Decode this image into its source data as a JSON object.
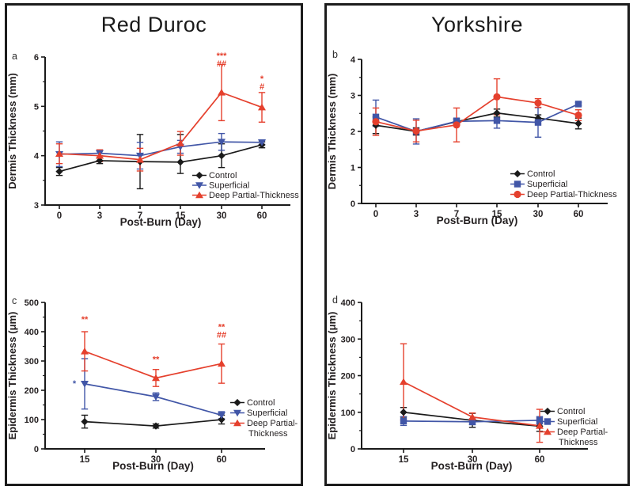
{
  "figure": {
    "groups": [
      {
        "title": "Red Duroc"
      },
      {
        "title": "Yorkshire"
      }
    ]
  },
  "colors": {
    "control": "#1a1a1a",
    "superficial": "#4156a7",
    "deep_partial_thickness": "#e5402d"
  },
  "chart_data": [
    {
      "id": "a",
      "panel_label": "a",
      "group": "Red Duroc",
      "type": "line",
      "xlabel": "Post-Burn (Day)",
      "ylabel": "Dermis  Thickness (mm)",
      "categories": [
        "0",
        "3",
        "7",
        "15",
        "30",
        "60"
      ],
      "ylim": [
        3,
        6
      ],
      "yticks": [
        3,
        4,
        5,
        6
      ],
      "grid": false,
      "legend_position": "lower-right",
      "series": [
        {
          "name": "Control",
          "color": "#1a1a1a",
          "marker": "diamond",
          "values": [
            3.68,
            3.9,
            3.88,
            3.87,
            4.0,
            4.22
          ],
          "err": [
            0.08,
            0.06,
            0.55,
            [
              0.23,
              0.56
            ],
            0.24,
            0.06
          ]
        },
        {
          "name": "Superficial",
          "color": "#4156a7",
          "marker": "triangle-down",
          "values": [
            4.03,
            4.05,
            4.0,
            4.18,
            4.28,
            4.27
          ],
          "err": [
            0.25,
            0.05,
            0.27,
            0.13,
            0.17,
            0.04
          ]
        },
        {
          "name": "Deep Partial-Thickness",
          "color": "#e5402d",
          "marker": "triangle-up",
          "values": [
            4.04,
            4.0,
            3.92,
            4.25,
            5.28,
            4.98
          ],
          "err": [
            0.2,
            0.12,
            0.23,
            0.24,
            0.57,
            0.3
          ]
        }
      ],
      "annotations": [
        {
          "x": "30",
          "text_lines": [
            "***",
            "##"
          ],
          "color": "#e5402d",
          "y": 5.97,
          "dx": 0
        },
        {
          "x": "60",
          "text_lines": [
            "*",
            "#"
          ],
          "color": "#e5402d",
          "y": 5.5,
          "dx": 0
        }
      ]
    },
    {
      "id": "b",
      "panel_label": "b",
      "group": "Yorkshire",
      "type": "line",
      "xlabel": "Post-Burn (Day)",
      "ylabel": "Dermis  Thickness (mm)",
      "categories": [
        "0",
        "3",
        "7",
        "15",
        "30",
        "60"
      ],
      "ylim": [
        0,
        4
      ],
      "yticks": [
        0,
        1,
        2,
        3,
        4
      ],
      "grid": false,
      "legend_position": "lower-right",
      "series": [
        {
          "name": "Control",
          "color": "#1a1a1a",
          "marker": "diamond",
          "values": [
            2.17,
            2.0,
            2.27,
            2.51,
            2.37,
            2.22
          ],
          "err": [
            0.23,
            0.1,
            0.06,
            0.11,
            0.09,
            0.15
          ]
        },
        {
          "name": "Superficial",
          "color": "#4156a7",
          "marker": "square",
          "values": [
            2.4,
            2.0,
            2.28,
            2.3,
            2.25,
            2.76
          ],
          "err": [
            [
              0.26,
              0.47
            ],
            0.35,
            0.09,
            0.21,
            0.41,
            0.04
          ]
        },
        {
          "name": "Deep Partial-Thickness",
          "color": "#e5402d",
          "marker": "circle",
          "values": [
            2.27,
            2.01,
            2.18,
            2.96,
            2.79,
            2.45
          ],
          "err": [
            0.38,
            0.3,
            0.47,
            0.5,
            0.12,
            0.15
          ]
        }
      ],
      "annotations": []
    },
    {
      "id": "c",
      "panel_label": "c",
      "group": "Red Duroc",
      "type": "line",
      "xlabel": "Post-Burn (Day)",
      "ylabel": "Epidermis  Thickness (μm)",
      "categories": [
        "15",
        "30",
        "60"
      ],
      "ylim": [
        0,
        500
      ],
      "yticks": [
        0,
        100,
        200,
        300,
        400,
        500
      ],
      "grid": false,
      "legend_position": "right",
      "legend_wrap": true,
      "series": [
        {
          "name": "Control",
          "color": "#1a1a1a",
          "marker": "diamond",
          "values": [
            93,
            78,
            100
          ],
          "err": [
            22,
            7,
            15
          ]
        },
        {
          "name": "Superficial",
          "color": "#4156a7",
          "marker": "triangle-down",
          "values": [
            222,
            178,
            115
          ],
          "err": [
            86,
            13,
            12
          ]
        },
        {
          "name": "Deep Partial-Thickness",
          "color": "#e5402d",
          "marker": "triangle-up",
          "values": [
            333,
            242,
            291
          ],
          "err": [
            67,
            29,
            67
          ]
        }
      ],
      "annotations": [
        {
          "x": "15",
          "text_lines": [
            "**"
          ],
          "color": "#e5402d",
          "y": 432,
          "dx": 0
        },
        {
          "x": "15",
          "text_lines": [
            "*"
          ],
          "color": "#4156a7",
          "y": 213,
          "dx": -13
        },
        {
          "x": "30",
          "text_lines": [
            "**"
          ],
          "color": "#e5402d",
          "y": 296,
          "dx": 0
        },
        {
          "x": "60",
          "text_lines": [
            "**",
            "##"
          ],
          "color": "#e5402d",
          "y": 407,
          "dx": 0
        }
      ]
    },
    {
      "id": "d",
      "panel_label": "d",
      "group": "Yorkshire",
      "type": "line",
      "xlabel": "Post-Burn (Day)",
      "ylabel": "Epidermis Thickness (μm)",
      "categories": [
        "15",
        "30",
        "60"
      ],
      "ylim": [
        0,
        400
      ],
      "yticks": [
        0,
        100,
        200,
        300,
        400
      ],
      "grid": false,
      "legend_position": "right",
      "legend_wrap": true,
      "series": [
        {
          "name": "Control",
          "color": "#1a1a1a",
          "marker": "diamond",
          "values": [
            100,
            78,
            62
          ],
          "err": [
            13,
            19,
            14
          ]
        },
        {
          "name": "Superficial",
          "color": "#4156a7",
          "marker": "square",
          "values": [
            76,
            74,
            78
          ],
          "err": [
            12,
            8,
            10
          ]
        },
        {
          "name": "Deep Partial-Thickness",
          "color": "#e5402d",
          "marker": "triangle-up",
          "values": [
            183,
            87,
            63
          ],
          "err": [
            104,
            11,
            45
          ]
        }
      ],
      "annotations": []
    }
  ]
}
